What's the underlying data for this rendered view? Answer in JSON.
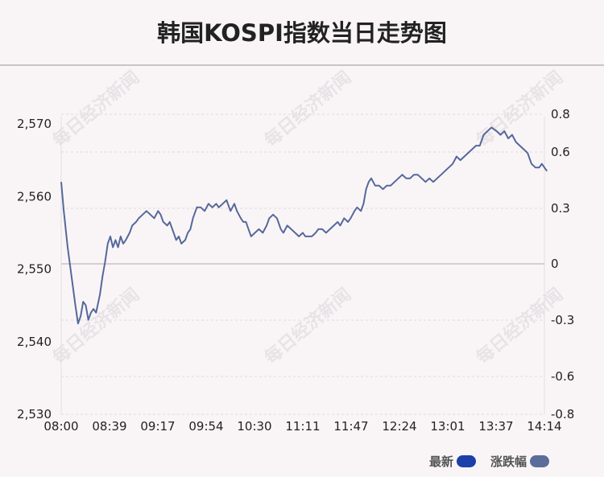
{
  "title": "韩国KOSPI指数当日走势图",
  "watermark": "每日经济新闻",
  "legend": [
    {
      "label": "最新",
      "color": "#1c3faa"
    },
    {
      "label": "涨跌幅",
      "color": "#5b6d9a"
    }
  ],
  "chart_data": {
    "type": "line",
    "title": "韩国KOSPI指数当日走势图",
    "x_ticks": [
      "08:00",
      "08:39",
      "09:17",
      "09:54",
      "10:30",
      "11:11",
      "11:47",
      "12:24",
      "13:01",
      "13:37",
      "14:14"
    ],
    "y_left": {
      "ticks": [
        "2,530",
        "2,540",
        "2,550",
        "2,560",
        "2,570"
      ],
      "range": [
        2530,
        2571
      ]
    },
    "y_right": {
      "ticks": [
        "0.8",
        "0.6",
        "0.3",
        "0",
        "-0.3",
        "-0.6",
        "-0.8"
      ],
      "values": [
        0.8,
        0.6,
        0.3,
        0,
        -0.3,
        -0.6,
        -0.8
      ]
    },
    "baseline": 2550,
    "series": [
      {
        "line_color": "#56689a",
        "points": [
          [
            "08:00",
            2562.0
          ],
          [
            "08:02",
            2558.0
          ],
          [
            "08:05",
            2553.0
          ],
          [
            "08:08",
            2549.0
          ],
          [
            "08:11",
            2545.0
          ],
          [
            "08:13",
            2542.5
          ],
          [
            "08:15",
            2543.5
          ],
          [
            "08:17",
            2545.5
          ],
          [
            "08:19",
            2545.0
          ],
          [
            "08:21",
            2543.0
          ],
          [
            "08:23",
            2544.0
          ],
          [
            "08:25",
            2544.5
          ],
          [
            "08:27",
            2544.0
          ],
          [
            "08:30",
            2546.5
          ],
          [
            "08:32",
            2549.0
          ],
          [
            "08:34",
            2551.0
          ],
          [
            "08:36",
            2553.5
          ],
          [
            "08:38",
            2554.5
          ],
          [
            "08:40",
            2553.0
          ],
          [
            "08:42",
            2554.0
          ],
          [
            "08:44",
            2553.0
          ],
          [
            "08:46",
            2554.5
          ],
          [
            "08:48",
            2553.5
          ],
          [
            "08:50",
            2554.0
          ],
          [
            "08:53",
            2555.0
          ],
          [
            "08:55",
            2556.0
          ],
          [
            "08:58",
            2556.5
          ],
          [
            "09:00",
            2557.0
          ],
          [
            "09:03",
            2557.5
          ],
          [
            "09:06",
            2558.0
          ],
          [
            "09:09",
            2557.5
          ],
          [
            "09:12",
            2557.0
          ],
          [
            "09:15",
            2558.0
          ],
          [
            "09:17",
            2557.5
          ],
          [
            "09:19",
            2556.5
          ],
          [
            "09:22",
            2556.0
          ],
          [
            "09:24",
            2556.5
          ],
          [
            "09:27",
            2555.0
          ],
          [
            "09:29",
            2554.0
          ],
          [
            "09:31",
            2554.5
          ],
          [
            "09:33",
            2553.5
          ],
          [
            "09:36",
            2554.0
          ],
          [
            "09:38",
            2555.0
          ],
          [
            "09:40",
            2555.5
          ],
          [
            "09:42",
            2557.0
          ],
          [
            "09:45",
            2558.5
          ],
          [
            "09:48",
            2558.5
          ],
          [
            "09:51",
            2558.0
          ],
          [
            "09:54",
            2559.0
          ],
          [
            "09:57",
            2558.5
          ],
          [
            "10:00",
            2559.0
          ],
          [
            "10:02",
            2558.5
          ],
          [
            "10:05",
            2559.0
          ],
          [
            "10:08",
            2559.5
          ],
          [
            "10:11",
            2558.0
          ],
          [
            "10:14",
            2559.0
          ],
          [
            "10:16",
            2558.0
          ],
          [
            "10:19",
            2557.0
          ],
          [
            "10:21",
            2556.5
          ],
          [
            "10:23",
            2556.5
          ],
          [
            "10:25",
            2555.5
          ],
          [
            "10:27",
            2554.5
          ],
          [
            "10:30",
            2555.0
          ],
          [
            "10:33",
            2555.5
          ],
          [
            "10:36",
            2555.0
          ],
          [
            "10:39",
            2556.0
          ],
          [
            "10:41",
            2557.0
          ],
          [
            "10:44",
            2557.5
          ],
          [
            "10:47",
            2557.0
          ],
          [
            "10:50",
            2555.5
          ],
          [
            "10:52",
            2555.0
          ],
          [
            "10:55",
            2556.0
          ],
          [
            "10:58",
            2555.5
          ],
          [
            "11:01",
            2555.0
          ],
          [
            "11:04",
            2554.5
          ],
          [
            "11:07",
            2555.0
          ],
          [
            "11:09",
            2554.5
          ],
          [
            "11:11",
            2554.5
          ],
          [
            "11:14",
            2554.5
          ],
          [
            "11:17",
            2555.0
          ],
          [
            "11:19",
            2555.5
          ],
          [
            "11:22",
            2555.5
          ],
          [
            "11:25",
            2555.0
          ],
          [
            "11:28",
            2555.5
          ],
          [
            "11:31",
            2556.0
          ],
          [
            "11:34",
            2556.5
          ],
          [
            "11:36",
            2556.0
          ],
          [
            "11:39",
            2557.0
          ],
          [
            "11:42",
            2556.5
          ],
          [
            "11:44",
            2557.0
          ],
          [
            "11:47",
            2558.0
          ],
          [
            "11:49",
            2558.5
          ],
          [
            "11:52",
            2558.0
          ],
          [
            "11:54",
            2559.0
          ],
          [
            "11:56",
            2561.0
          ],
          [
            "11:58",
            2562.0
          ],
          [
            "12:00",
            2562.5
          ],
          [
            "12:03",
            2561.5
          ],
          [
            "12:06",
            2561.5
          ],
          [
            "12:09",
            2561.0
          ],
          [
            "12:12",
            2561.5
          ],
          [
            "12:15",
            2561.5
          ],
          [
            "12:18",
            2562.0
          ],
          [
            "12:21",
            2562.5
          ],
          [
            "12:24",
            2563.0
          ],
          [
            "12:27",
            2562.5
          ],
          [
            "12:30",
            2562.5
          ],
          [
            "12:33",
            2563.0
          ],
          [
            "12:36",
            2563.0
          ],
          [
            "12:39",
            2562.5
          ],
          [
            "12:42",
            2562.0
          ],
          [
            "12:45",
            2562.5
          ],
          [
            "12:48",
            2562.0
          ],
          [
            "12:51",
            2562.5
          ],
          [
            "12:54",
            2563.0
          ],
          [
            "12:57",
            2563.5
          ],
          [
            "13:00",
            2564.0
          ],
          [
            "13:03",
            2564.5
          ],
          [
            "13:06",
            2565.5
          ],
          [
            "13:09",
            2565.0
          ],
          [
            "13:12",
            2565.5
          ],
          [
            "13:15",
            2566.0
          ],
          [
            "13:18",
            2566.5
          ],
          [
            "13:21",
            2567.0
          ],
          [
            "13:24",
            2567.0
          ],
          [
            "13:27",
            2568.5
          ],
          [
            "13:30",
            2569.0
          ],
          [
            "13:33",
            2569.5
          ],
          [
            "13:37",
            2569.0
          ],
          [
            "13:40",
            2568.5
          ],
          [
            "13:43",
            2569.0
          ],
          [
            "13:46",
            2568.0
          ],
          [
            "13:49",
            2568.5
          ],
          [
            "13:52",
            2567.5
          ],
          [
            "13:55",
            2567.0
          ],
          [
            "13:58",
            2566.5
          ],
          [
            "14:01",
            2566.0
          ],
          [
            "14:04",
            2564.5
          ],
          [
            "14:07",
            2564.0
          ],
          [
            "14:10",
            2564.0
          ],
          [
            "14:12",
            2564.5
          ],
          [
            "14:14",
            2564.0
          ],
          [
            "14:16",
            2563.5
          ]
        ]
      }
    ]
  }
}
